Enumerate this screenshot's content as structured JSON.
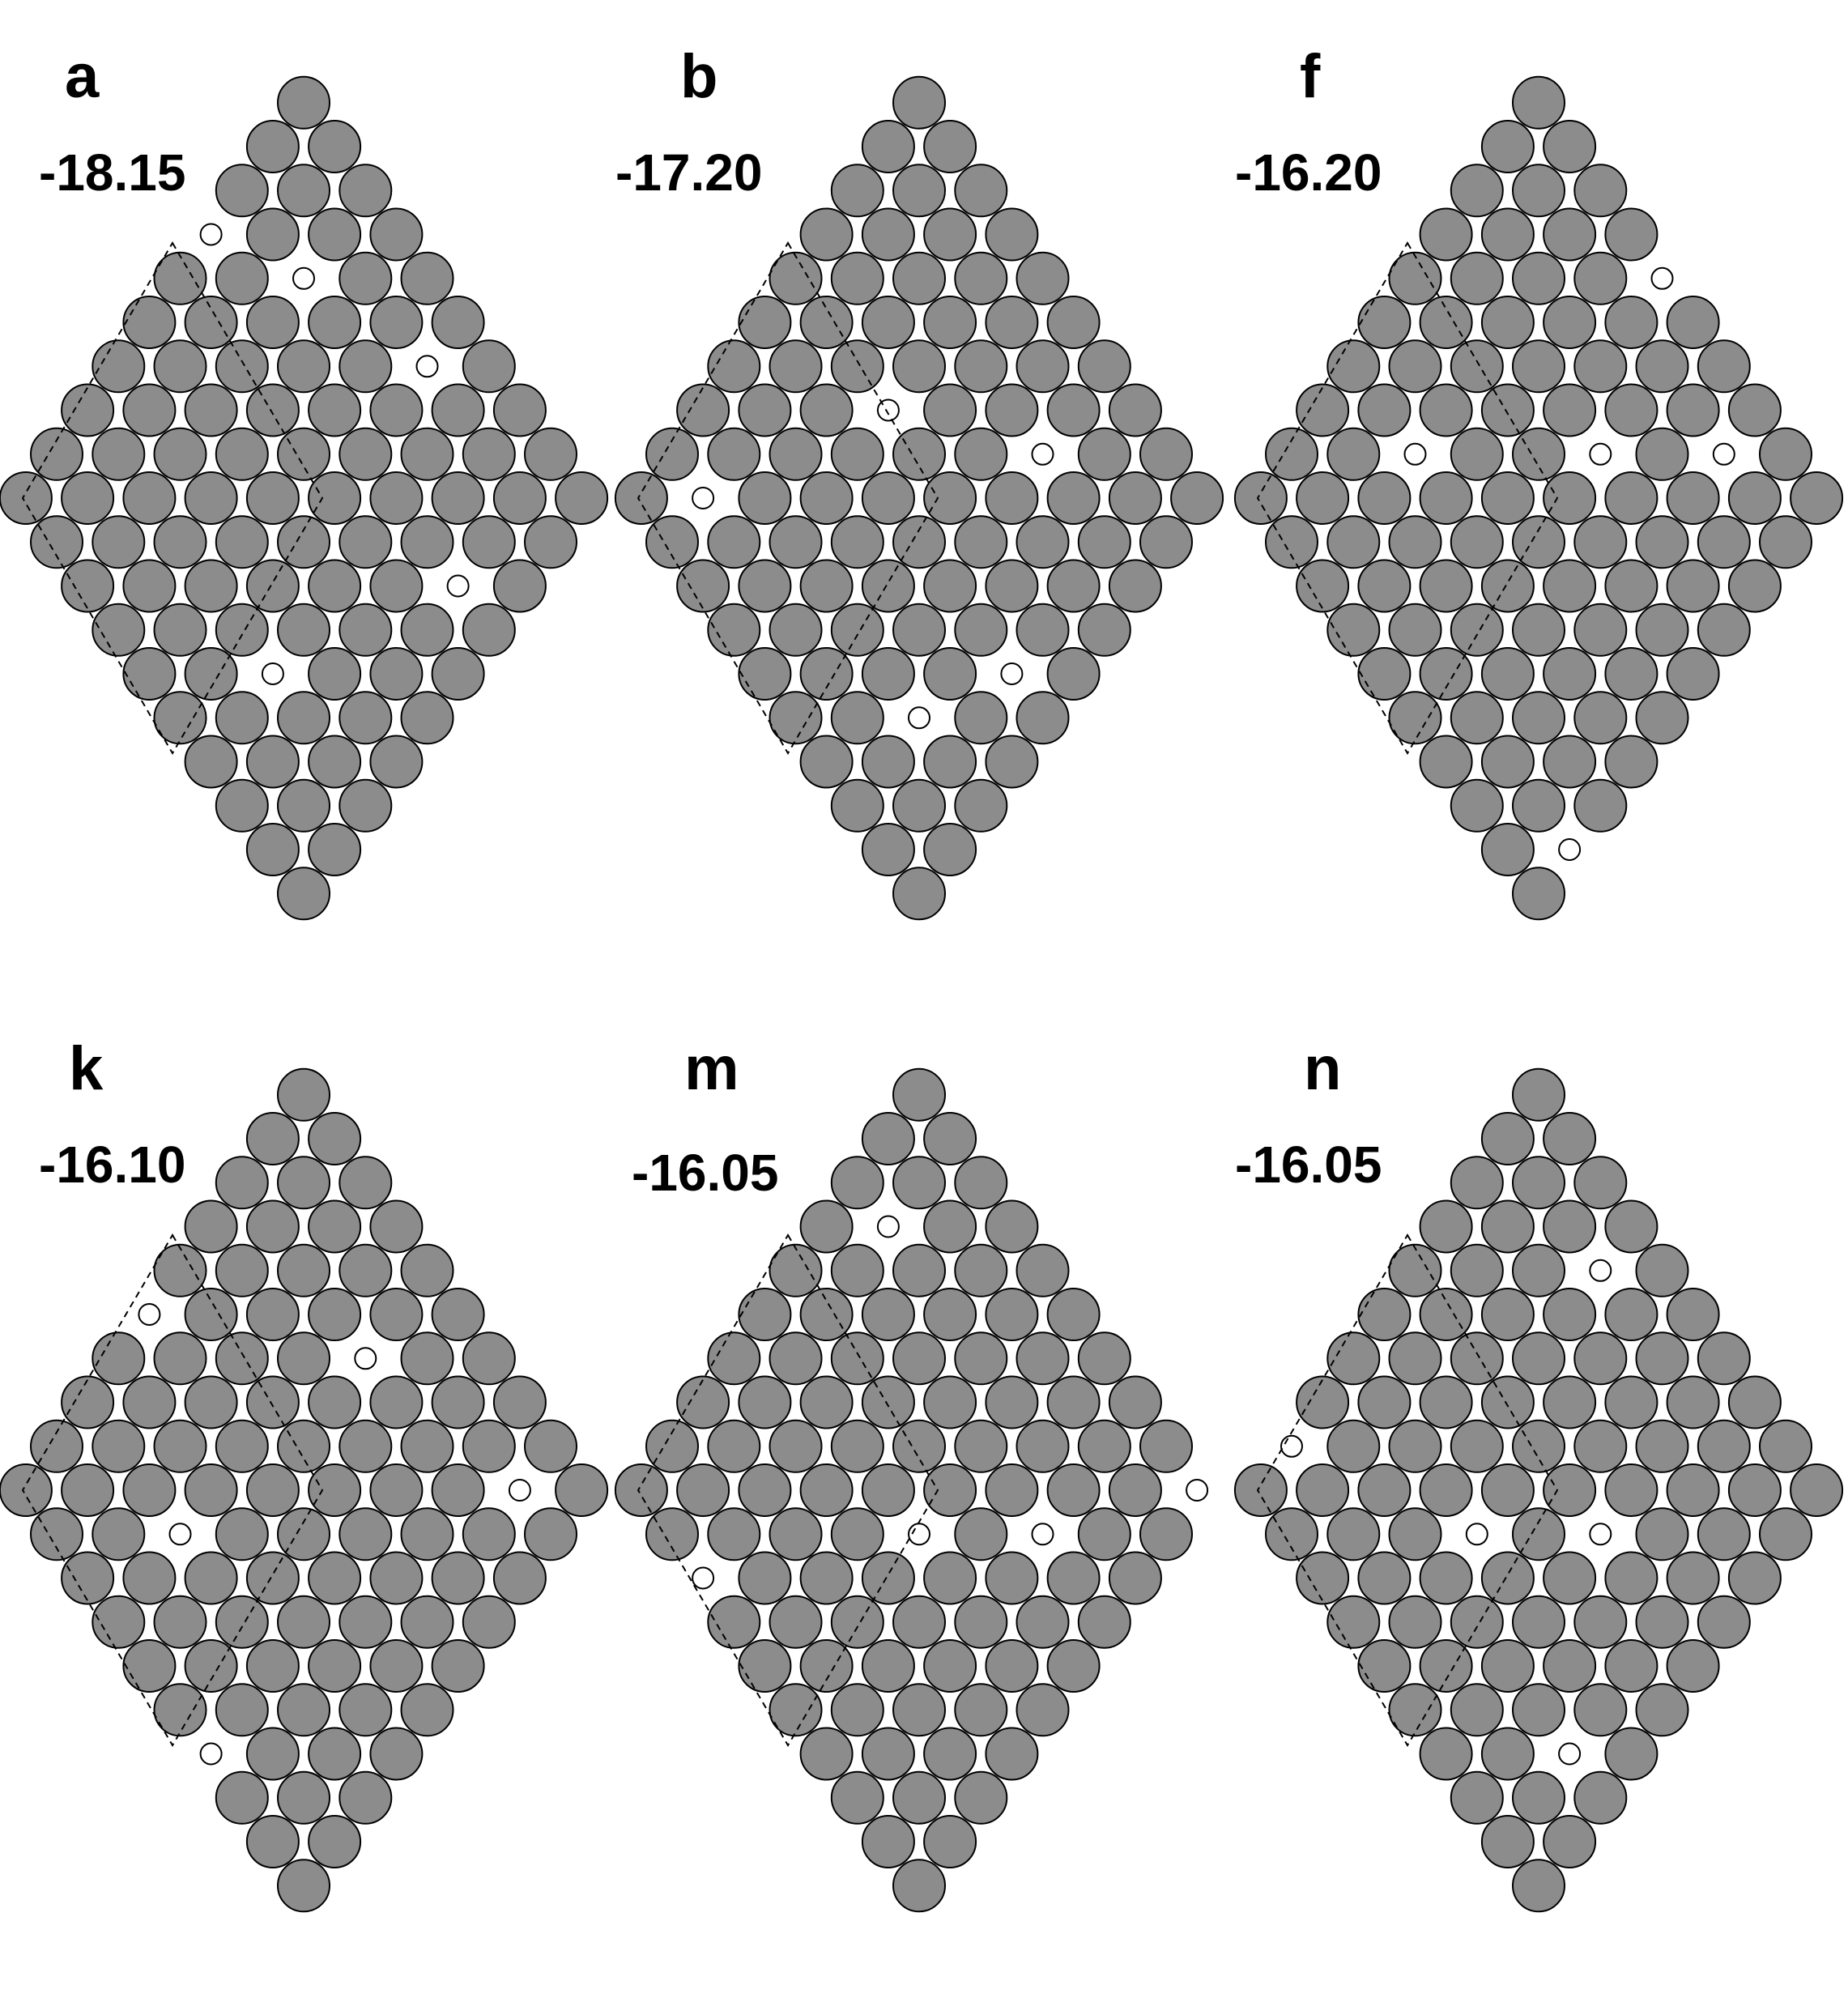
{
  "panels": [
    {
      "letter": "a",
      "energy": "-18.15"
    },
    {
      "letter": "b",
      "energy": "-17.20"
    },
    {
      "letter": "f",
      "energy": "-16.20"
    },
    {
      "letter": "k",
      "energy": "-16.10"
    },
    {
      "letter": "m",
      "energy": "-16.05"
    },
    {
      "letter": "n",
      "energy": "-16.05"
    }
  ],
  "colors": {
    "atom_fill": "#8c8c8c",
    "atom_stroke": "#000000",
    "vacancy_fill": "#ffffff"
  }
}
